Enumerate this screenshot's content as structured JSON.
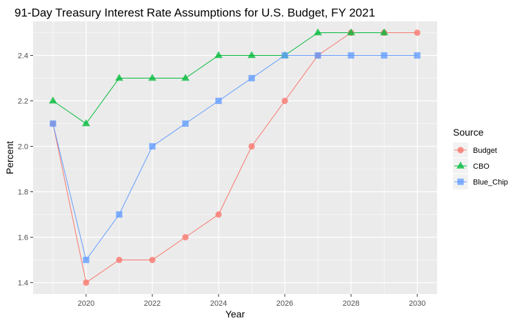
{
  "chart_data": {
    "type": "line",
    "title": "91-Day Treasury Interest Rate Assumptions for U.S. Budget, FY 2021",
    "xlabel": "Year",
    "ylabel": "Percent",
    "xlim": [
      2018.4,
      2030.6
    ],
    "ylim": [
      1.35,
      2.55
    ],
    "x_ticks": [
      2020,
      2022,
      2024,
      2026,
      2028,
      2030
    ],
    "y_ticks": [
      1.4,
      1.6,
      1.8,
      2.0,
      2.2,
      2.4
    ],
    "grid": true,
    "legend_title": "Source",
    "legend_position": "right",
    "series": [
      {
        "name": "Budget",
        "color": "#F8766D",
        "marker": "circle",
        "x": [
          2019,
          2020,
          2021,
          2022,
          2023,
          2024,
          2025,
          2026,
          2027,
          2028,
          2029,
          2030
        ],
        "values": [
          2.1,
          1.4,
          1.5,
          1.5,
          1.6,
          1.7,
          2.0,
          2.2,
          2.4,
          2.5,
          2.5,
          2.5
        ]
      },
      {
        "name": "CBO",
        "color": "#00BA38",
        "marker": "triangle",
        "x": [
          2019,
          2020,
          2021,
          2022,
          2023,
          2024,
          2025,
          2026,
          2027,
          2028,
          2029
        ],
        "values": [
          2.2,
          2.1,
          2.3,
          2.3,
          2.3,
          2.4,
          2.4,
          2.4,
          2.5,
          2.5,
          2.5
        ]
      },
      {
        "name": "Blue_Chip",
        "color": "#619CFF",
        "marker": "square",
        "x": [
          2019,
          2020,
          2021,
          2022,
          2023,
          2024,
          2025,
          2026,
          2027,
          2028,
          2029,
          2030
        ],
        "values": [
          2.1,
          1.5,
          1.7,
          2.0,
          2.1,
          2.2,
          2.3,
          2.4,
          2.4,
          2.4,
          2.4,
          2.4
        ]
      }
    ]
  }
}
